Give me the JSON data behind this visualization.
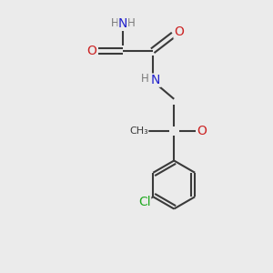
{
  "background_color": "#ebebeb",
  "bond_color": "#3a3a3a",
  "bond_width": 1.5,
  "atom_colors": {
    "C": "#3a3a3a",
    "N": "#2222cc",
    "O": "#cc2222",
    "H": "#7a7a7a",
    "Cl": "#22aa22"
  },
  "font_size": 10,
  "small_font_size": 8.5
}
